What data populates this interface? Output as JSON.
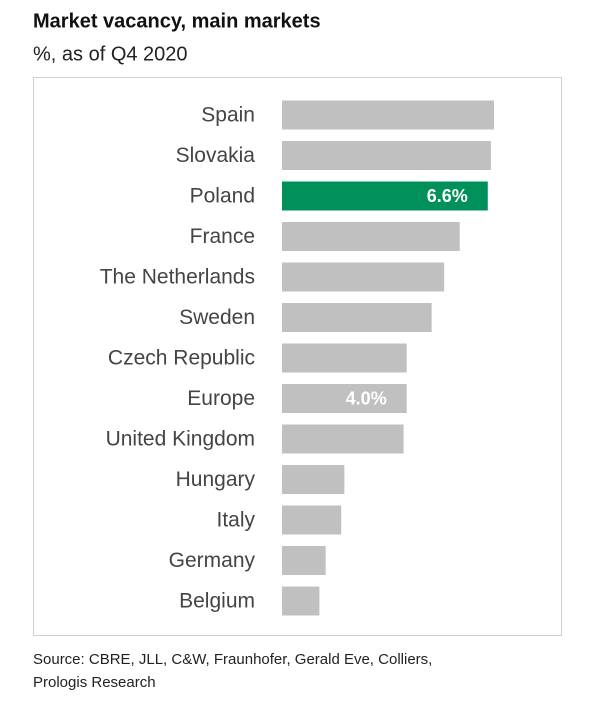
{
  "chart_data": {
    "type": "bar",
    "orientation": "horizontal",
    "title": "Market vacancy, main markets",
    "subtitle": "%, as of Q4 2020",
    "source": [
      "Source: CBRE, JLL, C&W, Fraunhofer, Gerald Eve, Colliers,",
      "Prologis Research"
    ],
    "categories": [
      "Spain",
      "Slovakia",
      "Poland",
      "France",
      "The Netherlands",
      "Sweden",
      "Czech Republic",
      "Europe",
      "United Kingdom",
      "Hungary",
      "Italy",
      "Germany",
      "Belgium"
    ],
    "values": [
      6.8,
      6.7,
      6.6,
      5.7,
      5.2,
      4.8,
      4.0,
      4.0,
      3.9,
      2.0,
      1.9,
      1.4,
      1.2
    ],
    "value_labels": [
      null,
      null,
      "6.6%",
      null,
      null,
      null,
      null,
      "4.0%",
      null,
      null,
      null,
      null,
      null
    ],
    "colors": [
      "#c0c0c0",
      "#c0c0c0",
      "#00905a",
      "#c0c0c0",
      "#c0c0c0",
      "#c0c0c0",
      "#c0c0c0",
      "#c0c0c0",
      "#c0c0c0",
      "#c0c0c0",
      "#c0c0c0",
      "#c0c0c0",
      "#c0c0c0"
    ]
  }
}
